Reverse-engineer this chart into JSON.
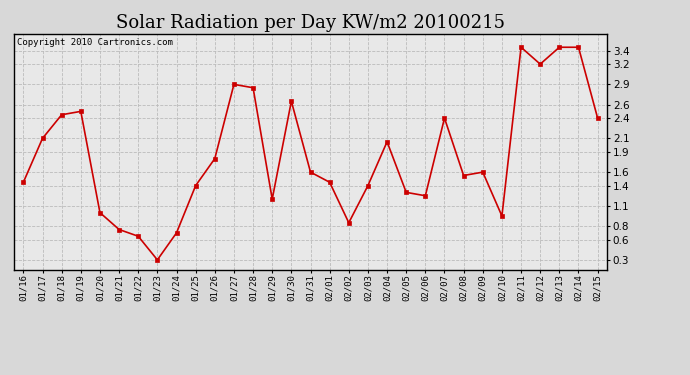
{
  "title": "Solar Radiation per Day KW/m2 20100215",
  "copyright": "Copyright 2010 Cartronics.com",
  "labels": [
    "01/16",
    "01/17",
    "01/18",
    "01/19",
    "01/20",
    "01/21",
    "01/22",
    "01/23",
    "01/24",
    "01/25",
    "01/26",
    "01/27",
    "01/28",
    "01/29",
    "01/30",
    "01/31",
    "02/01",
    "02/02",
    "02/03",
    "02/04",
    "02/05",
    "02/06",
    "02/07",
    "02/08",
    "02/09",
    "02/10",
    "02/11",
    "02/12",
    "02/13",
    "02/14",
    "02/15"
  ],
  "values": [
    1.45,
    2.1,
    2.45,
    2.5,
    1.0,
    0.75,
    0.65,
    0.3,
    0.7,
    1.4,
    1.8,
    2.9,
    2.85,
    1.2,
    2.65,
    1.6,
    1.45,
    0.85,
    1.4,
    2.05,
    1.3,
    1.25,
    2.4,
    1.55,
    1.6,
    0.95,
    3.45,
    3.2,
    3.45,
    3.45,
    2.4
  ],
  "line_color": "#cc0000",
  "marker": "s",
  "marker_size": 2.5,
  "line_width": 1.2,
  "ylim": [
    0.15,
    3.65
  ],
  "yticks": [
    0.3,
    0.6,
    0.8,
    1.1,
    1.4,
    1.6,
    1.9,
    2.1,
    2.4,
    2.6,
    2.9,
    3.2,
    3.4
  ],
  "bg_color": "#d8d8d8",
  "plot_bg_color": "#e8e8e8",
  "grid_color": "#bbbbbb",
  "title_fontsize": 13,
  "copyright_fontsize": 6.5,
  "tick_fontsize": 6.5,
  "ytick_fontsize": 7.5
}
